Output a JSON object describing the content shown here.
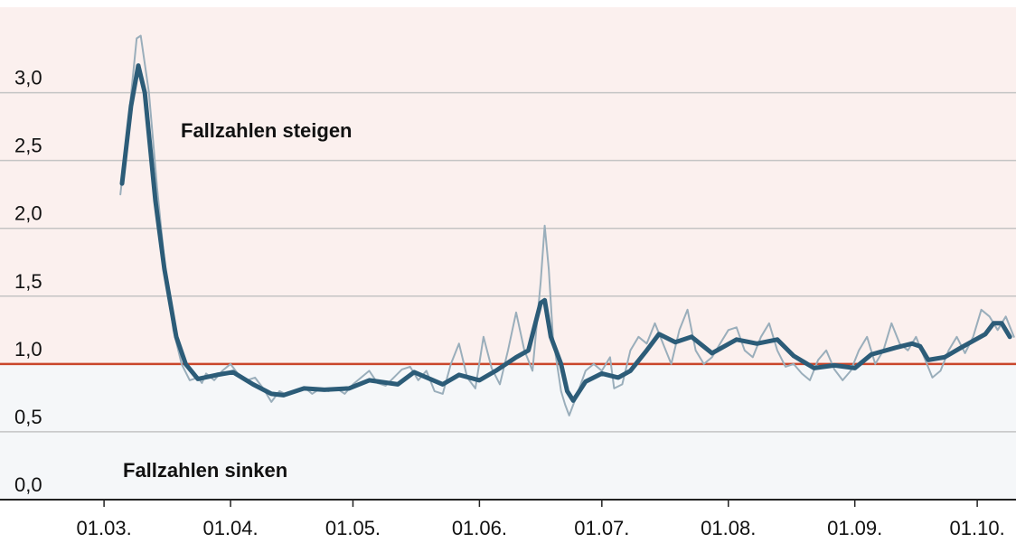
{
  "chart_data": {
    "type": "line",
    "annotations": [
      "Fallzahlen steigen",
      "Fallzahlen sinken"
    ],
    "annotation_colors": [
      "#c0401c",
      "#2c5c78"
    ],
    "threshold": 1,
    "threshold_color": "#c9472b",
    "above_color": "#fbf0ee",
    "below_color": "#f5f7f9",
    "grid": true,
    "xlim": [
      -25.5,
      223.5
    ],
    "xticks": [
      {
        "value": 0,
        "label": "01.03."
      },
      {
        "value": 31,
        "label": "01.04."
      },
      {
        "value": 61,
        "label": "01.05."
      },
      {
        "value": 92,
        "label": "01.06."
      },
      {
        "value": 122,
        "label": "01.07."
      },
      {
        "value": 153,
        "label": "01.08."
      },
      {
        "value": 184,
        "label": "01.09."
      },
      {
        "value": 214,
        "label": "01.10."
      }
    ],
    "ylim": [
      0,
      3.63
    ],
    "yticks": [
      {
        "value": 0,
        "label": "0,0"
      },
      {
        "value": 0.5,
        "label": "0,5"
      },
      {
        "value": 1,
        "label": "1,0"
      },
      {
        "value": 1.5,
        "label": "1,5"
      },
      {
        "value": 2,
        "label": "2,0"
      },
      {
        "value": 2.5,
        "label": "2,5"
      },
      {
        "value": 3,
        "label": "3,0"
      }
    ],
    "series": [
      {
        "color": "#9aaebb",
        "width": 2,
        "x": [
          4,
          6,
          8,
          9,
          11,
          13,
          15,
          17,
          19,
          21,
          23,
          24,
          25,
          27,
          29,
          31,
          33,
          35,
          37,
          39,
          41,
          43,
          45,
          47,
          49,
          51,
          53,
          55,
          57,
          59,
          61,
          63,
          65,
          67,
          69,
          71,
          73,
          75,
          77,
          79,
          81,
          83,
          85,
          87,
          89,
          91,
          93,
          95,
          97,
          99,
          101,
          103,
          105,
          107,
          108,
          109,
          110,
          112,
          113,
          114,
          116,
          118,
          120,
          122,
          124,
          125,
          127,
          129,
          131,
          133,
          135,
          137,
          139,
          141,
          143,
          145,
          147,
          149,
          151,
          153,
          155,
          157,
          159,
          161,
          163,
          165,
          167,
          169,
          171,
          173,
          175,
          177,
          179,
          181,
          183,
          185,
          187,
          189,
          191,
          193,
          195,
          197,
          199,
          201,
          203,
          205,
          207,
          209,
          211,
          213,
          215,
          217,
          219,
          221,
          223
        ],
        "values": [
          2.25,
          2.8,
          3.4,
          3.42,
          3.0,
          2.3,
          1.7,
          1.25,
          1.0,
          0.88,
          0.9,
          0.86,
          0.93,
          0.88,
          0.95,
          1.0,
          0.92,
          0.88,
          0.9,
          0.82,
          0.72,
          0.8,
          0.77,
          0.8,
          0.83,
          0.78,
          0.82,
          0.8,
          0.82,
          0.78,
          0.85,
          0.9,
          0.95,
          0.86,
          0.84,
          0.9,
          0.96,
          0.98,
          0.88,
          0.95,
          0.8,
          0.78,
          1.0,
          1.15,
          0.9,
          0.82,
          1.2,
          0.97,
          0.85,
          1.1,
          1.38,
          1.1,
          0.95,
          1.6,
          2.02,
          1.7,
          1.2,
          0.8,
          0.7,
          0.62,
          0.78,
          0.95,
          1.0,
          0.95,
          1.05,
          0.82,
          0.85,
          1.1,
          1.2,
          1.15,
          1.3,
          1.15,
          1.0,
          1.25,
          1.4,
          1.1,
          1.0,
          1.05,
          1.15,
          1.25,
          1.27,
          1.1,
          1.05,
          1.2,
          1.3,
          1.1,
          0.98,
          1.0,
          0.93,
          0.88,
          1.03,
          1.1,
          0.96,
          0.88,
          0.95,
          1.1,
          1.2,
          1.0,
          1.1,
          1.3,
          1.15,
          1.1,
          1.2,
          1.05,
          0.9,
          0.95,
          1.1,
          1.2,
          1.08,
          1.2,
          1.4,
          1.35,
          1.25,
          1.35,
          1.2
        ]
      },
      {
        "color": "#2c5c78",
        "width": 5,
        "x": [
          4.4,
          6.6,
          8.4,
          10,
          12.6,
          14.8,
          17.7,
          20,
          23,
          27.7,
          31.6,
          36.5,
          41,
          44,
          49,
          54,
          60,
          65,
          72,
          76,
          83,
          87,
          92,
          96,
          101,
          104,
          107,
          108,
          109.5,
          112,
          113.5,
          115,
          118,
          122,
          126,
          129,
          133,
          136,
          140,
          144,
          149,
          155,
          160,
          165,
          169,
          174,
          179,
          184,
          188,
          194,
          198,
          200,
          202,
          206,
          210,
          216,
          218,
          220,
          222
        ],
        "values": [
          2.33,
          2.9,
          3.2,
          3.0,
          2.2,
          1.7,
          1.2,
          1.0,
          0.89,
          0.92,
          0.94,
          0.85,
          0.78,
          0.77,
          0.82,
          0.81,
          0.82,
          0.88,
          0.85,
          0.94,
          0.85,
          0.92,
          0.88,
          0.95,
          1.05,
          1.1,
          1.45,
          1.47,
          1.2,
          1.0,
          0.8,
          0.73,
          0.87,
          0.93,
          0.9,
          0.95,
          1.1,
          1.22,
          1.16,
          1.2,
          1.08,
          1.18,
          1.15,
          1.18,
          1.06,
          0.97,
          0.99,
          0.97,
          1.07,
          1.12,
          1.15,
          1.13,
          1.03,
          1.05,
          1.12,
          1.22,
          1.3,
          1.3,
          1.2
        ]
      }
    ]
  }
}
